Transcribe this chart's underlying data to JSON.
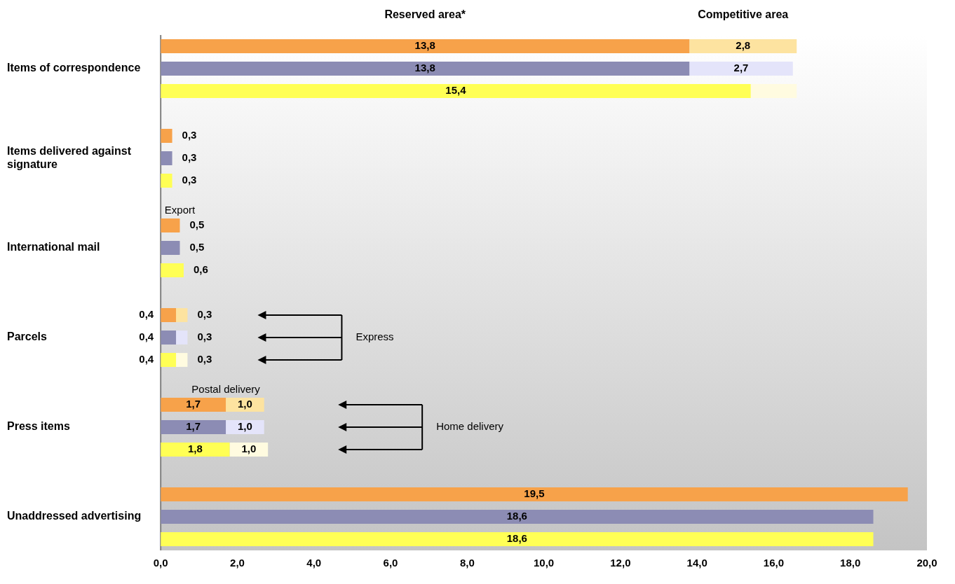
{
  "chart_data": {
    "type": "bar",
    "orientation": "horizontal",
    "stacked": true,
    "categories": [
      null,
      "Items of correspondence",
      null,
      null,
      null,
      "Items delivered against signature",
      null,
      null,
      null,
      "International mail",
      null,
      null,
      null,
      "Parcels",
      null,
      null,
      null,
      "Press items",
      null,
      null,
      null,
      "Unaddressed advertising",
      null
    ],
    "series": [
      {
        "colors": [
          "#f7a24a",
          "#8c8cb4",
          "#ffff55",
          null,
          "#f7a24a",
          "#8c8cb4",
          "#ffff55",
          null,
          "#f7a24a",
          "#8c8cb4",
          "#ffff55",
          null,
          "#f7a24a",
          "#8c8cb4",
          "#ffff55",
          null,
          "#f7a24a",
          "#8c8cb4",
          "#ffff55",
          null,
          "#f7a24a",
          "#8c8cb4",
          "#ffff55"
        ],
        "values": [
          13.8,
          13.8,
          15.4,
          null,
          0.3,
          0.3,
          0.3,
          null,
          0.5,
          0.5,
          0.6,
          null,
          0.4,
          0.4,
          0.4,
          null,
          1.7,
          1.7,
          1.8,
          null,
          19.5,
          18.6,
          18.6
        ],
        "value_labels": [
          "13,8",
          "13,8",
          "15,4",
          null,
          "0,3",
          "0,3",
          "0,3",
          null,
          "0,5",
          "0,5",
          "0,6",
          null,
          "0,4",
          "0,4",
          "0,4",
          null,
          "1,7",
          "1,7",
          "1,8",
          null,
          "19,5",
          "18,6",
          "18,6"
        ]
      },
      {
        "colors": [
          "#fde3a0",
          "#e4e4fa",
          "#fffbe0",
          null,
          null,
          null,
          null,
          null,
          null,
          null,
          null,
          null,
          "#fde3a0",
          "#e4e4fa",
          "#fffbe0",
          null,
          "#fde3a0",
          "#e4e4fa",
          "#fffbe0",
          null,
          null,
          null,
          null
        ],
        "values": [
          2.8,
          2.7,
          1.2,
          null,
          null,
          null,
          null,
          null,
          null,
          null,
          null,
          null,
          0.3,
          0.3,
          0.3,
          null,
          1.0,
          1.0,
          1.0,
          null,
          null,
          null,
          null
        ],
        "value_labels": [
          "2,8",
          "2,7",
          null,
          null,
          null,
          null,
          null,
          null,
          null,
          null,
          null,
          null,
          "0,3",
          "0,3",
          "0,3",
          null,
          "1,0",
          "1,0",
          "1,0",
          null,
          null,
          null,
          null
        ]
      }
    ],
    "xlim": [
      0,
      20
    ],
    "xticks": [
      {
        "value": 0,
        "label": "0,0"
      },
      {
        "value": 2,
        "label": "2,0"
      },
      {
        "value": 4,
        "label": "4,0"
      },
      {
        "value": 6,
        "label": "6,0"
      },
      {
        "value": 8,
        "label": "8,0"
      },
      {
        "value": 10,
        "label": "10,0"
      },
      {
        "value": 12,
        "label": "12,0"
      },
      {
        "value": 14,
        "label": "14,0"
      },
      {
        "value": 16,
        "label": "16,0"
      },
      {
        "value": 18,
        "label": "18,0"
      },
      {
        "value": 20,
        "label": "20,0"
      }
    ],
    "annotations": [
      "Reserved area*",
      "Competitive area",
      {
        "text": "Export",
        "x": 0.5,
        "y": "International mail"
      },
      "Express",
      {
        "text": "Postal delivery",
        "x": 1.7,
        "y": "Press items"
      },
      "Home delivery"
    ],
    "grid": false,
    "legend": false
  }
}
